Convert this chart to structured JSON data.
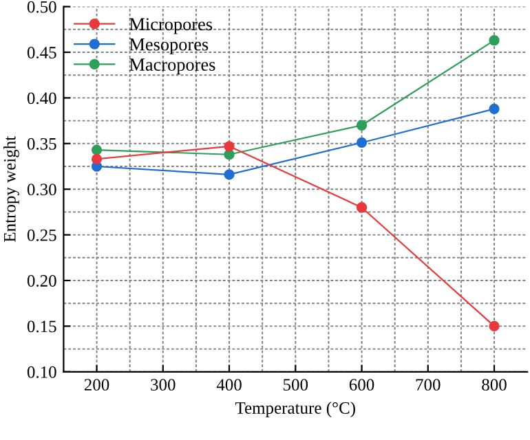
{
  "chart_data": {
    "type": "line",
    "xlabel": "Temperature (°C)",
    "ylabel": "Entropy weight",
    "x": [
      200,
      400,
      600,
      800
    ],
    "series": [
      {
        "name": "Micropores",
        "color": "#e8393c",
        "values": [
          0.333,
          0.347,
          0.28,
          0.15
        ]
      },
      {
        "name": "Mesopores",
        "color": "#1f6ed4",
        "values": [
          0.325,
          0.316,
          0.351,
          0.388
        ]
      },
      {
        "name": "Macropores",
        "color": "#2e9e5b",
        "values": [
          0.343,
          0.338,
          0.37,
          0.463
        ]
      }
    ],
    "xlim": [
      150,
      850
    ],
    "xticks": [
      200,
      300,
      400,
      500,
      600,
      700,
      800
    ],
    "ylim": [
      0.1,
      0.5
    ],
    "yticks": [
      {
        "value": 0.1,
        "label": "0.10"
      },
      {
        "value": 0.15,
        "label": "0.15"
      },
      {
        "value": 0.2,
        "label": "0.20"
      },
      {
        "value": 0.25,
        "label": "0.25"
      },
      {
        "value": 0.3,
        "label": "0.30"
      },
      {
        "value": 0.35,
        "label": "0.35"
      },
      {
        "value": 0.4,
        "label": "0.40"
      },
      {
        "value": 0.45,
        "label": "0.45"
      },
      {
        "value": 0.5,
        "label": "0.50"
      }
    ],
    "grid": true,
    "legend": "top left",
    "marker": "circle",
    "line_style": "solid"
  }
}
